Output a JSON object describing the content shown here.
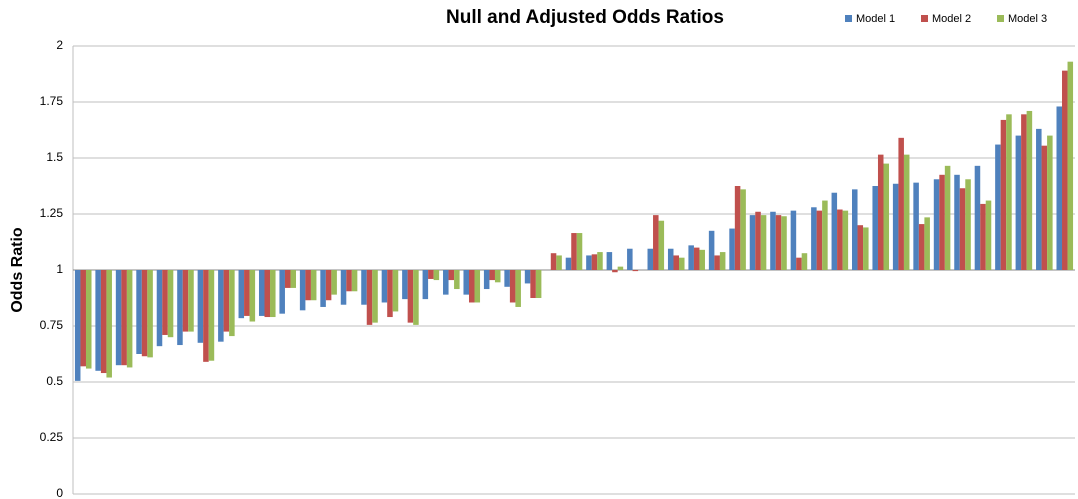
{
  "chart_data": {
    "type": "bar",
    "title": "Null and Adjusted Odds Ratios",
    "y_label": "Odds Ratio",
    "categories": [
      null,
      null,
      null,
      null,
      null,
      null,
      null,
      null,
      null,
      null,
      null,
      null,
      null,
      null,
      null,
      null,
      null,
      null,
      null,
      null,
      null,
      null,
      null,
      null,
      null,
      null,
      null,
      null,
      null,
      null,
      null,
      null,
      null,
      null,
      null,
      null,
      null,
      null,
      null,
      null,
      null,
      null,
      null,
      null,
      null,
      null,
      null,
      null,
      null
    ],
    "series": [
      {
        "name": "Model 1",
        "color": "#4f81bd",
        "values": [
          0.505,
          0.55,
          0.575,
          0.625,
          0.66,
          0.665,
          0.675,
          0.68,
          0.785,
          0.795,
          0.805,
          0.82,
          0.835,
          0.845,
          0.845,
          0.855,
          0.87,
          0.87,
          0.89,
          0.89,
          0.915,
          0.925,
          0.94,
          1.0,
          1.055,
          1.065,
          1.08,
          1.095,
          1.095,
          1.095,
          1.11,
          1.175,
          1.185,
          1.245,
          1.26,
          1.265,
          1.28,
          1.345,
          1.36,
          1.375,
          1.385,
          1.39,
          1.405,
          1.425,
          1.465,
          1.56,
          1.6,
          1.63,
          1.73
        ]
      },
      {
        "name": "Model 2",
        "color": "#c0504d",
        "values": [
          0.57,
          0.54,
          0.575,
          0.615,
          0.71,
          0.725,
          0.59,
          0.725,
          0.795,
          0.79,
          0.92,
          0.865,
          0.865,
          0.905,
          0.755,
          0.79,
          0.765,
          0.96,
          0.955,
          0.855,
          0.955,
          0.855,
          0.875,
          1.075,
          1.165,
          1.07,
          0.99,
          0.995,
          1.245,
          1.065,
          1.1,
          1.065,
          1.375,
          1.26,
          1.245,
          1.055,
          1.265,
          1.27,
          1.2,
          1.515,
          1.59,
          1.205,
          1.425,
          1.365,
          1.295,
          1.67,
          1.695,
          1.555,
          1.89
        ]
      },
      {
        "name": "Model 3",
        "color": "#9bbb59",
        "values": [
          0.56,
          0.52,
          0.565,
          0.61,
          0.7,
          0.725,
          0.595,
          0.705,
          0.77,
          0.79,
          0.92,
          0.865,
          0.89,
          0.905,
          0.765,
          0.815,
          0.755,
          0.955,
          0.915,
          0.855,
          0.945,
          0.835,
          0.875,
          1.065,
          1.165,
          1.08,
          1.015,
          1.0,
          1.22,
          1.055,
          1.09,
          1.08,
          1.36,
          1.245,
          1.24,
          1.075,
          1.31,
          1.265,
          1.19,
          1.475,
          1.515,
          1.235,
          1.465,
          1.405,
          1.31,
          1.695,
          1.71,
          1.6,
          1.93
        ]
      }
    ],
    "bar_baseline": 1,
    "ylim": [
      0,
      2
    ],
    "yticks": [
      0,
      0.25,
      0.5,
      0.75,
      1,
      1.25,
      1.5,
      1.75,
      2
    ],
    "grid": true,
    "legend": "top-right"
  }
}
